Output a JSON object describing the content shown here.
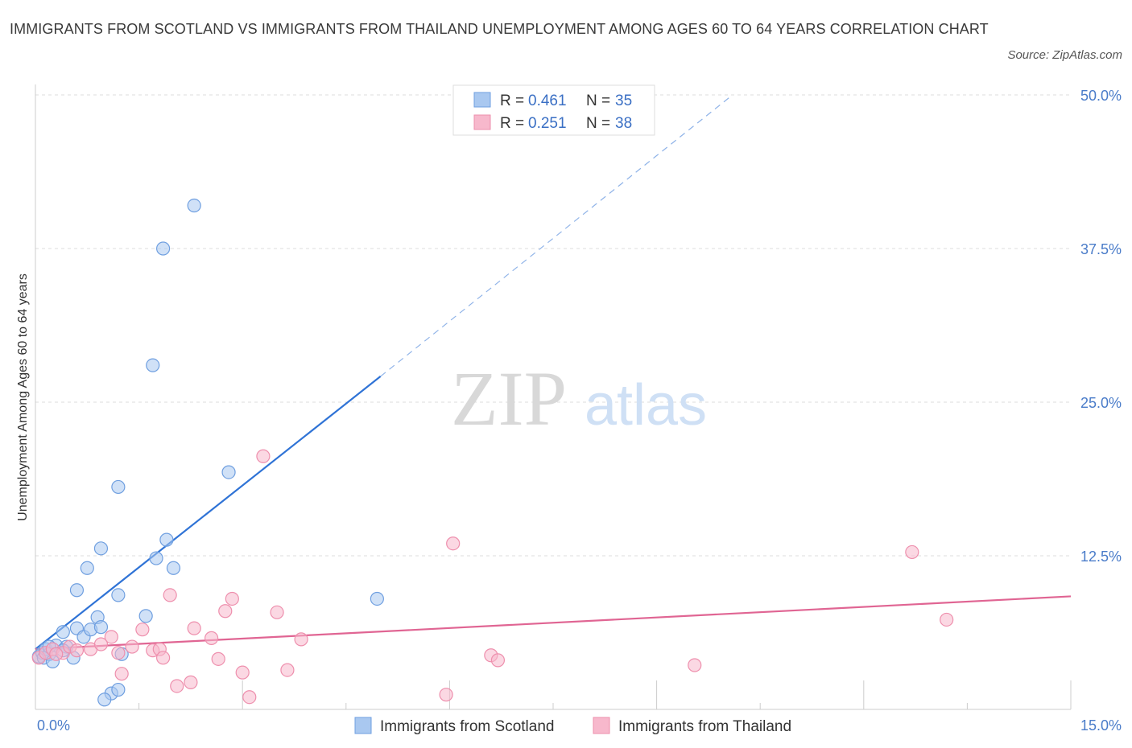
{
  "title": "IMMIGRANTS FROM SCOTLAND VS IMMIGRANTS FROM THAILAND UNEMPLOYMENT AMONG AGES 60 TO 64 YEARS CORRELATION CHART",
  "source": "Source: ZipAtlas.com",
  "watermark": {
    "zip": "ZIP",
    "atlas": "atlas"
  },
  "colors": {
    "scotland_fill": "#a9c8f0",
    "scotland_stroke": "#6f9fe0",
    "scotland_line": "#2f73d6",
    "thailand_fill": "#f7b8cc",
    "thailand_stroke": "#ee8fad",
    "thailand_line": "#e06593",
    "grid": "#dddddd",
    "tick": "#4a7cc9"
  },
  "stats_legend": [
    {
      "series": "Immigrants from Scotland",
      "r_label": "R =",
      "r": "0.461",
      "n_label": "N =",
      "n": "35"
    },
    {
      "series": "Immigrants from Thailand",
      "r_label": "R =",
      "r": "0.251",
      "n_label": "N =",
      "n": "38"
    }
  ],
  "chart_data": {
    "type": "scatter",
    "title": "IMMIGRANTS FROM SCOTLAND VS IMMIGRANTS FROM THAILAND UNEMPLOYMENT AMONG AGES 60 TO 64 YEARS CORRELATION CHART",
    "xlabel": "",
    "ylabel": "Unemployment Among Ages 60 to 64 years",
    "xlim": [
      0,
      15
    ],
    "ylim": [
      0,
      50
    ],
    "x_tick_labels": [
      "0.0%",
      "15.0%"
    ],
    "y_ticks": [
      12.5,
      25,
      37.5,
      50
    ],
    "y_tick_labels": [
      "12.5%",
      "25.0%",
      "37.5%",
      "50.0%"
    ],
    "series": [
      {
        "name": "Immigrants from Scotland",
        "points": [
          [
            0.05,
            4.3
          ],
          [
            0.1,
            4.6
          ],
          [
            0.12,
            4.2
          ],
          [
            0.15,
            4.9
          ],
          [
            0.2,
            4.5
          ],
          [
            0.25,
            3.9
          ],
          [
            0.3,
            5.2
          ],
          [
            0.4,
            6.3
          ],
          [
            0.45,
            5.1
          ],
          [
            0.55,
            4.2
          ],
          [
            0.6,
            6.6
          ],
          [
            0.7,
            5.9
          ],
          [
            0.8,
            6.5
          ],
          [
            0.9,
            7.5
          ],
          [
            0.95,
            6.7
          ],
          [
            0.6,
            9.7
          ],
          [
            0.75,
            11.5
          ],
          [
            0.95,
            13.1
          ],
          [
            1.2,
            9.3
          ],
          [
            1.25,
            4.5
          ],
          [
            1.1,
            1.3
          ],
          [
            1.2,
            1.6
          ],
          [
            1.0,
            0.8
          ],
          [
            1.6,
            7.6
          ],
          [
            1.75,
            12.3
          ],
          [
            1.9,
            13.8
          ],
          [
            2.0,
            11.5
          ],
          [
            1.2,
            18.1
          ],
          [
            2.8,
            19.3
          ],
          [
            1.7,
            28.0
          ],
          [
            1.85,
            37.5
          ],
          [
            2.3,
            41.0
          ],
          [
            4.95,
            9.0
          ],
          [
            0.4,
            4.8
          ],
          [
            0.2,
            5.1
          ]
        ],
        "trend": {
          "x": [
            0.0,
            5.0
          ],
          "y": [
            4.9,
            27.1
          ],
          "dashed_x": [
            5.0,
            10.1
          ],
          "dashed_y": [
            27.1,
            50.0
          ]
        }
      },
      {
        "name": "Immigrants from Thailand",
        "points": [
          [
            0.05,
            4.2
          ],
          [
            0.15,
            4.6
          ],
          [
            0.25,
            4.9
          ],
          [
            0.4,
            4.6
          ],
          [
            0.5,
            5.1
          ],
          [
            0.6,
            4.8
          ],
          [
            0.8,
            4.9
          ],
          [
            0.95,
            5.3
          ],
          [
            1.1,
            5.9
          ],
          [
            1.2,
            4.6
          ],
          [
            1.25,
            2.9
          ],
          [
            1.4,
            5.1
          ],
          [
            1.55,
            6.5
          ],
          [
            1.7,
            4.8
          ],
          [
            1.8,
            4.9
          ],
          [
            1.85,
            4.2
          ],
          [
            1.95,
            9.3
          ],
          [
            2.05,
            1.9
          ],
          [
            2.25,
            2.2
          ],
          [
            2.3,
            6.6
          ],
          [
            2.55,
            5.8
          ],
          [
            2.65,
            4.1
          ],
          [
            2.75,
            8.0
          ],
          [
            2.85,
            9.0
          ],
          [
            3.0,
            3.0
          ],
          [
            3.1,
            1.0
          ],
          [
            3.3,
            20.6
          ],
          [
            3.5,
            7.9
          ],
          [
            3.65,
            3.2
          ],
          [
            3.85,
            5.7
          ],
          [
            5.95,
            1.2
          ],
          [
            6.05,
            13.5
          ],
          [
            6.6,
            4.4
          ],
          [
            6.7,
            4.0
          ],
          [
            9.55,
            3.6
          ],
          [
            12.7,
            12.8
          ],
          [
            13.2,
            7.3
          ],
          [
            0.3,
            4.5
          ]
        ],
        "trend": {
          "x": [
            0.0,
            15.0
          ],
          "y": [
            4.9,
            9.2
          ]
        }
      }
    ],
    "legend_placement": "bottom"
  }
}
